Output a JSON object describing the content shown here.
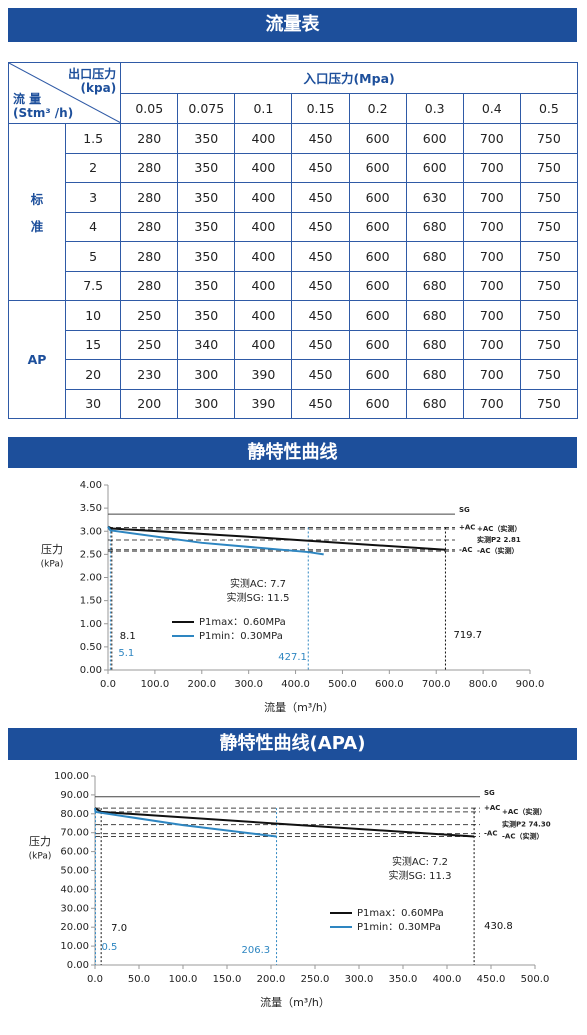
{
  "sections": [
    "流量表",
    "静特性曲线",
    "静特性曲线(APA)"
  ],
  "table": {
    "corner_top": [
      "出口压力",
      "(kpa)"
    ],
    "corner_bottom": [
      "流 量",
      "(Stm³ /h)"
    ],
    "column_group": "入口压力(Mpa)",
    "columns": [
      "0.05",
      "0.075",
      "0.1",
      "0.15",
      "0.2",
      "0.3",
      "0.4",
      "0.5"
    ],
    "groups": [
      {
        "label": [
          "标",
          "准"
        ],
        "rows": [
          {
            "flow": "1.5",
            "values": [
              280,
              350,
              400,
              450,
              600,
              600,
              700,
              750
            ]
          },
          {
            "flow": "2",
            "values": [
              280,
              350,
              400,
              450,
              600,
              600,
              700,
              750
            ]
          },
          {
            "flow": "3",
            "values": [
              280,
              350,
              400,
              450,
              600,
              630,
              700,
              750
            ]
          },
          {
            "flow": "4",
            "values": [
              280,
              350,
              400,
              450,
              600,
              680,
              700,
              750
            ]
          },
          {
            "flow": "5",
            "values": [
              280,
              350,
              400,
              450,
              600,
              680,
              700,
              750
            ]
          },
          {
            "flow": "7.5",
            "values": [
              280,
              350,
              400,
              450,
              600,
              680,
              700,
              750
            ]
          }
        ]
      },
      {
        "label": [
          "AP"
        ],
        "rows": [
          {
            "flow": "10",
            "values": [
              250,
              350,
              400,
              450,
              600,
              680,
              700,
              750
            ]
          },
          {
            "flow": "15",
            "values": [
              250,
              340,
              400,
              450,
              600,
              680,
              700,
              750
            ]
          },
          {
            "flow": "20",
            "values": [
              230,
              300,
              390,
              450,
              600,
              680,
              700,
              750
            ]
          },
          {
            "flow": "30",
            "values": [
              200,
              300,
              390,
              450,
              600,
              680,
              700,
              750
            ]
          }
        ]
      }
    ]
  },
  "chart_data": [
    {
      "type": "line",
      "xlabel": "流量（m³/h）",
      "ylabel": [
        "压力",
        "(kPa)"
      ],
      "xlim": [
        0,
        900
      ],
      "xticks": [
        {
          "value": 0,
          "label": "0.0"
        },
        {
          "value": 100,
          "label": "100.0"
        },
        {
          "value": 200,
          "label": "200.0"
        },
        {
          "value": 300,
          "label": "300.0"
        },
        {
          "value": 400,
          "label": "400.0"
        },
        {
          "value": 500,
          "label": "500.0"
        },
        {
          "value": 600,
          "label": "600.0"
        },
        {
          "value": 700,
          "label": "700.0"
        },
        {
          "value": 800,
          "label": "800.0"
        },
        {
          "value": 900,
          "label": "900.0"
        }
      ],
      "ylim": [
        0,
        4
      ],
      "yticks": [
        {
          "value": 0,
          "label": "0.00"
        },
        {
          "value": 0.5,
          "label": "0.50"
        },
        {
          "value": 1,
          "label": "1.00"
        },
        {
          "value": 1.5,
          "label": "1.50"
        },
        {
          "value": 2,
          "label": "2.00"
        },
        {
          "value": 2.5,
          "label": "2.50"
        },
        {
          "value": 3,
          "label": "3.00"
        },
        {
          "value": 3.5,
          "label": "3.50"
        },
        {
          "value": 4,
          "label": "4.00"
        }
      ],
      "grid": false,
      "series": [
        {
          "name": "P1max：0.60MPa",
          "color": "#111111",
          "x": [
            0,
            8.1,
            300,
            719.7
          ],
          "values": [
            3.1,
            3.06,
            2.88,
            2.6
          ]
        },
        {
          "name": "P1min：0.30MPa",
          "color": "#2e86c1",
          "x": [
            0,
            5.1,
            200,
            427.1,
            460
          ],
          "values": [
            3.1,
            3.02,
            2.75,
            2.55,
            2.5
          ]
        }
      ],
      "reference_lines": [
        {
          "label": "SG",
          "value": 3.37,
          "style": "solid"
        },
        {
          "label": "+AC",
          "value": 3.08,
          "style": "dashed"
        },
        {
          "label": "+AC（实测）",
          "value": 3.05,
          "style": "dashed"
        },
        {
          "label": "实测P2 2.81",
          "value": 2.81,
          "style": "dashed"
        },
        {
          "label": "-AC",
          "value": 2.6,
          "style": "dashed"
        },
        {
          "label": "-AC（实测）",
          "value": 2.57,
          "style": "dashed"
        }
      ],
      "markers": [
        {
          "x": 8.1,
          "label": "8.1",
          "color": "#111111"
        },
        {
          "x": 5.1,
          "label": "5.1",
          "color": "#2e86c1"
        },
        {
          "x": 427.1,
          "label": "427.1",
          "color": "#2e86c1"
        },
        {
          "x": 719.7,
          "label": "719.7",
          "color": "#111111"
        }
      ],
      "annotations": [
        "实测AC: 7.7",
        "实测SG: 11.5"
      ]
    },
    {
      "type": "line",
      "xlabel": "流量（m³/h）",
      "ylabel": [
        "压力",
        "(kPa)"
      ],
      "xlim": [
        0,
        500
      ],
      "xticks": [
        {
          "value": 0,
          "label": "0.0"
        },
        {
          "value": 50,
          "label": "50.0"
        },
        {
          "value": 100,
          "label": "100.0"
        },
        {
          "value": 150,
          "label": "150.0"
        },
        {
          "value": 200,
          "label": "200.0"
        },
        {
          "value": 250,
          "label": "250.0"
        },
        {
          "value": 300,
          "label": "300.0"
        },
        {
          "value": 350,
          "label": "350.0"
        },
        {
          "value": 400,
          "label": "400.0"
        },
        {
          "value": 450,
          "label": "450.0"
        },
        {
          "value": 500,
          "label": "500.0"
        }
      ],
      "ylim": [
        0,
        100
      ],
      "yticks": [
        {
          "value": 0,
          "label": "0.00"
        },
        {
          "value": 10,
          "label": "10.00"
        },
        {
          "value": 20,
          "label": "20.00"
        },
        {
          "value": 30,
          "label": "30.00"
        },
        {
          "value": 40,
          "label": "40.00"
        },
        {
          "value": 50,
          "label": "50.00"
        },
        {
          "value": 60,
          "label": "60.00"
        },
        {
          "value": 70,
          "label": "70.00"
        },
        {
          "value": 80,
          "label": "80.00"
        },
        {
          "value": 90,
          "label": "90.00"
        },
        {
          "value": 100,
          "label": "100.00"
        }
      ],
      "grid": false,
      "series": [
        {
          "name": "P1max：0.60MPa",
          "color": "#111111",
          "x": [
            0,
            7,
            200,
            430.8
          ],
          "values": [
            83,
            81,
            75,
            68
          ]
        },
        {
          "name": "P1min：0.30MPa",
          "color": "#2e86c1",
          "x": [
            0,
            0.5,
            100,
            206.3
          ],
          "values": [
            83,
            81,
            74,
            68
          ]
        }
      ],
      "reference_lines": [
        {
          "label": "SG",
          "value": 89,
          "style": "solid"
        },
        {
          "label": "+AC",
          "value": 83,
          "style": "dashed"
        },
        {
          "label": "+AC（实测）",
          "value": 81,
          "style": "dashed"
        },
        {
          "label": "实测P2 74.30",
          "value": 74.3,
          "style": "dashed"
        },
        {
          "label": "-AC",
          "value": 69.5,
          "style": "dashed"
        },
        {
          "label": "-AC（实测）",
          "value": 68,
          "style": "dashed"
        }
      ],
      "markers": [
        {
          "x": 7,
          "label": "7.0",
          "color": "#111111"
        },
        {
          "x": 0.5,
          "label": "0.5",
          "color": "#2e86c1"
        },
        {
          "x": 206.3,
          "label": "206.3",
          "color": "#2e86c1"
        },
        {
          "x": 430.8,
          "label": "430.8",
          "color": "#111111"
        }
      ],
      "annotations": [
        "实测AC: 7.2",
        "实测SG: 11.3"
      ]
    }
  ]
}
